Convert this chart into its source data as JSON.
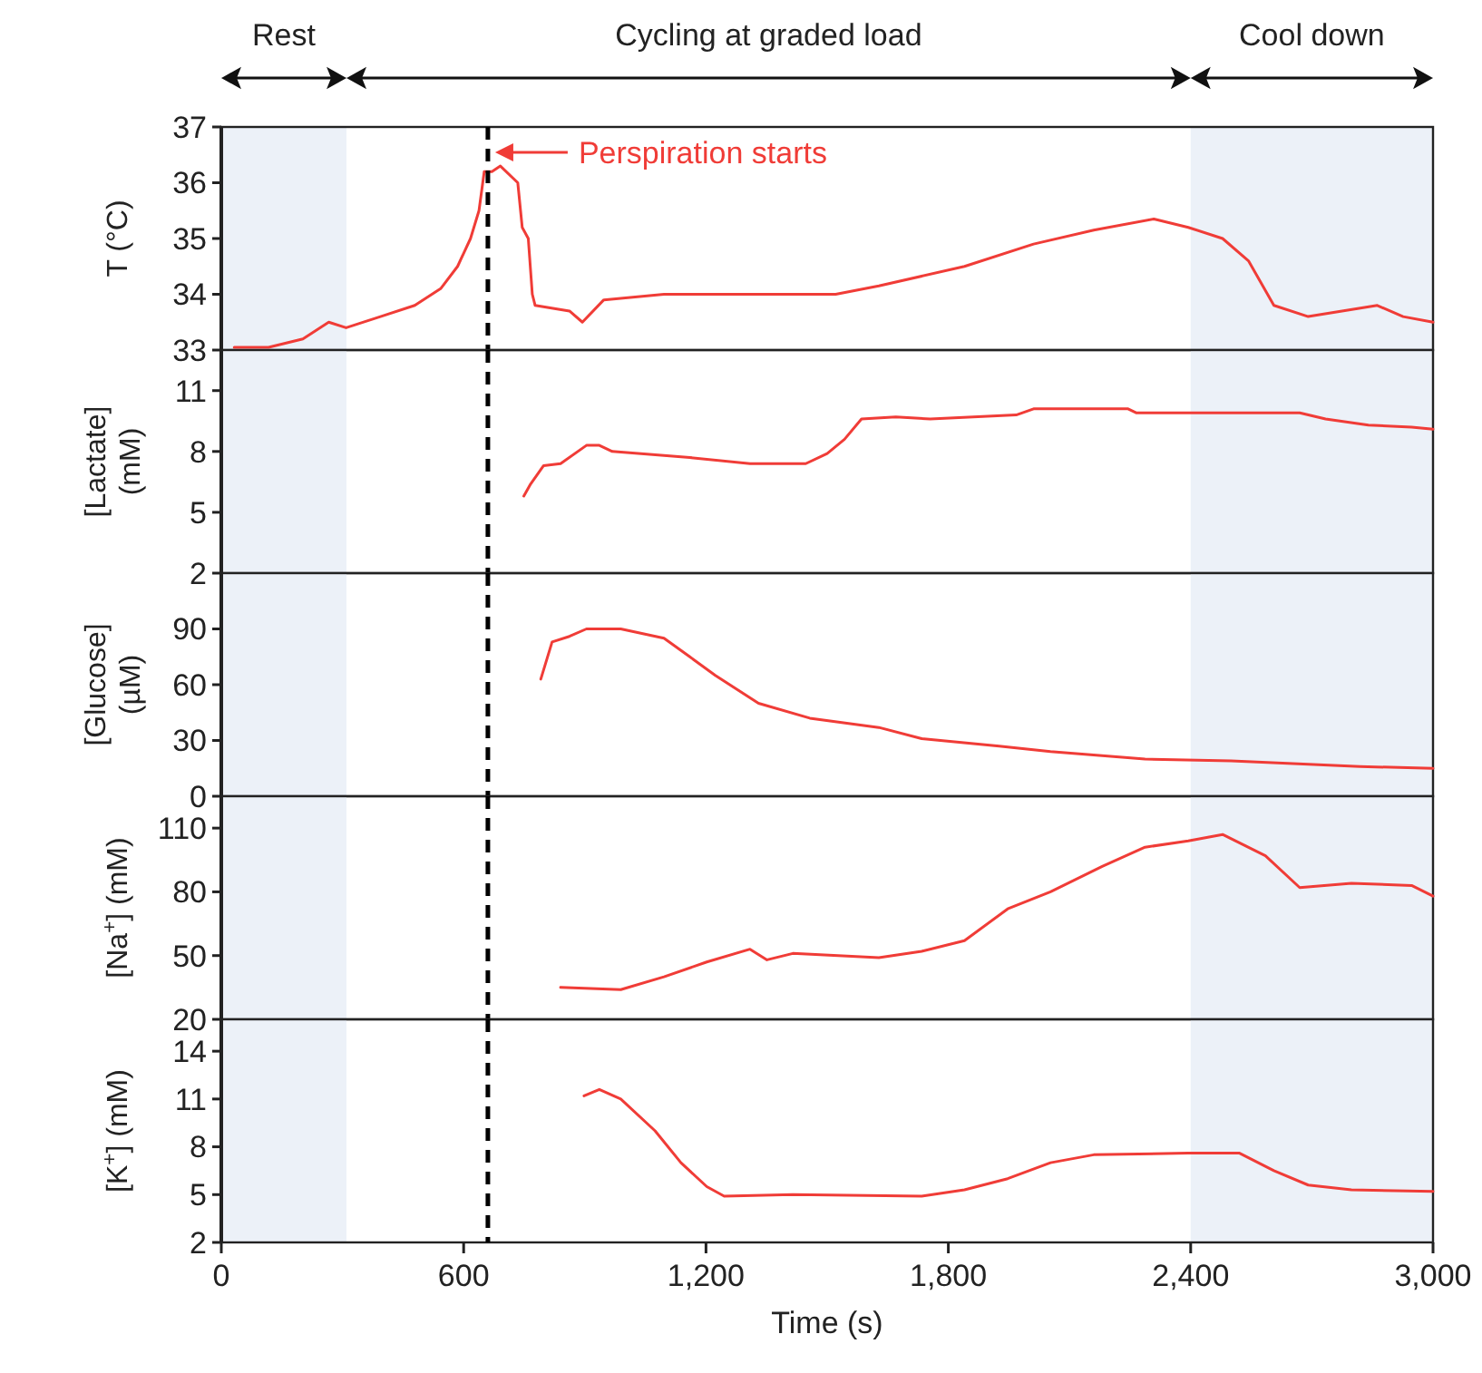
{
  "chart_data": [
    {
      "type": "line",
      "ylabel": "T (°C)",
      "xlim": [
        0,
        3000
      ],
      "ylim": [
        33,
        37
      ],
      "yticks": [
        33,
        34,
        35,
        36,
        37
      ],
      "tick_labels": "y",
      "grid": false,
      "series": [
        {
          "color": "#f03c37",
          "x": [
            32,
            117,
            202,
            266,
            309,
            394,
            479,
            543,
            585,
            617,
            638,
            651,
            670,
            691,
            734,
            745,
            760,
            770,
            777,
            862,
            894,
            947,
            1096,
            1521,
            1628,
            1840,
            2011,
            2160,
            2309,
            2394,
            2479,
            2543,
            2606,
            2691,
            2862,
            2926,
            3000
          ],
          "values": [
            33.05,
            33.05,
            33.2,
            33.5,
            33.4,
            33.6,
            33.8,
            34.1,
            34.5,
            35.0,
            35.5,
            36.2,
            36.2,
            36.3,
            36.0,
            35.2,
            35.0,
            34.0,
            33.8,
            33.7,
            33.5,
            33.9,
            34.0,
            34.0,
            34.15,
            34.5,
            34.9,
            35.15,
            35.35,
            35.2,
            35.0,
            34.6,
            33.8,
            33.6,
            33.8,
            33.6,
            33.5
          ]
        }
      ],
      "ref_lines": [
        {
          "axis": "x",
          "value": 660,
          "color": "#000000",
          "line_style": "dashed"
        }
      ],
      "bands": [
        {
          "axis": "x",
          "from": 0,
          "to": 310,
          "label": "Rest",
          "color": "#ecf1f8"
        },
        {
          "axis": "x",
          "from": 2400,
          "to": 3000,
          "label": "Cool down",
          "color": "#ecf1f8"
        }
      ],
      "annotations": [
        "Perspiration starts",
        "Cycling at graded load"
      ]
    },
    {
      "type": "line",
      "ylabel": "[Lactate] (mM)",
      "xlim": [
        0,
        3000
      ],
      "ylim": [
        2,
        13
      ],
      "yticks": [
        2,
        5,
        8,
        11
      ],
      "tick_labels": "y",
      "grid": false,
      "series": [
        {
          "color": "#f03c37",
          "x": [
            749,
            766,
            798,
            840,
            904,
            936,
            968,
            1160,
            1309,
            1447,
            1500,
            1543,
            1585,
            1670,
            1755,
            1968,
            2011,
            2245,
            2266,
            2670,
            2734,
            2840,
            2947,
            3000
          ],
          "values": [
            5.8,
            6.4,
            7.3,
            7.4,
            8.3,
            8.3,
            8.0,
            7.7,
            7.4,
            7.4,
            7.9,
            8.6,
            9.6,
            9.7,
            9.6,
            9.8,
            10.1,
            10.1,
            9.9,
            9.9,
            9.6,
            9.3,
            9.2,
            9.1
          ]
        }
      ],
      "ref_lines": [
        {
          "axis": "x",
          "value": 660,
          "color": "#000000",
          "line_style": "dashed"
        }
      ],
      "bands": [
        {
          "axis": "x",
          "from": 0,
          "to": 310,
          "color": "#ecf1f8"
        },
        {
          "axis": "x",
          "from": 2400,
          "to": 3000,
          "color": "#ecf1f8"
        }
      ]
    },
    {
      "type": "line",
      "ylabel": "[Glucose] (µM)",
      "xlim": [
        0,
        3000
      ],
      "ylim": [
        0,
        120
      ],
      "yticks": [
        0,
        30,
        60,
        90
      ],
      "tick_labels": "y",
      "grid": false,
      "series": [
        {
          "color": "#f03c37",
          "x": [
            791,
            819,
            862,
            904,
            989,
            1096,
            1160,
            1223,
            1330,
            1457,
            1628,
            1734,
            1926,
            2053,
            2287,
            2500,
            2819,
            3000
          ],
          "values": [
            63,
            83,
            86,
            90,
            90,
            85,
            75,
            65,
            50,
            42,
            37,
            31,
            27,
            24,
            20,
            19,
            16,
            15
          ]
        }
      ],
      "ref_lines": [
        {
          "axis": "x",
          "value": 660,
          "color": "#000000",
          "line_style": "dashed"
        }
      ],
      "bands": [
        {
          "axis": "x",
          "from": 0,
          "to": 310,
          "color": "#ecf1f8"
        },
        {
          "axis": "x",
          "from": 2400,
          "to": 3000,
          "color": "#ecf1f8"
        }
      ]
    },
    {
      "type": "line",
      "ylabel": "[Na$^{+}$] (mM)",
      "xlim": [
        0,
        3000
      ],
      "ylim": [
        20,
        125
      ],
      "yticks": [
        20,
        50,
        80,
        110
      ],
      "tick_labels": "y",
      "grid": false,
      "series": [
        {
          "color": "#f03c37",
          "x": [
            840,
            989,
            1096,
            1202,
            1309,
            1351,
            1415,
            1628,
            1734,
            1840,
            1947,
            2053,
            2181,
            2287,
            2394,
            2479,
            2585,
            2670,
            2798,
            2947,
            3000
          ],
          "values": [
            35,
            34,
            40,
            47,
            53,
            48,
            51,
            49,
            52,
            57,
            72,
            80,
            92,
            101,
            104,
            107,
            97,
            82,
            84,
            83,
            78
          ]
        }
      ],
      "ref_lines": [
        {
          "axis": "x",
          "value": 660,
          "color": "#000000",
          "line_style": "dashed"
        }
      ],
      "bands": [
        {
          "axis": "x",
          "from": 0,
          "to": 310,
          "color": "#ecf1f8"
        },
        {
          "axis": "x",
          "from": 2400,
          "to": 3000,
          "color": "#ecf1f8"
        }
      ]
    },
    {
      "type": "line",
      "ylabel": "[K$^{+}$] (mM)",
      "xlabel": "Time (s)",
      "xlim": [
        0,
        3000
      ],
      "xticks": [
        0,
        600,
        {
          "value": 1200,
          "label": "1,200"
        },
        {
          "value": 1800,
          "label": "1,800"
        },
        {
          "value": 2400,
          "label": "2,400"
        },
        {
          "value": 3000,
          "label": "3,000"
        }
      ],
      "ylim": [
        2,
        16
      ],
      "yticks": [
        2,
        5,
        8,
        11,
        14
      ],
      "grid": false,
      "series": [
        {
          "color": "#f03c37",
          "x": [
            898,
            936,
            989,
            1074,
            1138,
            1202,
            1245,
            1415,
            1734,
            1840,
            1947,
            2053,
            2160,
            2394,
            2521,
            2606,
            2691,
            2798,
            3000
          ],
          "values": [
            11.2,
            11.6,
            11.0,
            9.0,
            7.0,
            5.5,
            4.9,
            5.0,
            4.9,
            5.3,
            6.0,
            7.0,
            7.5,
            7.6,
            7.6,
            6.5,
            5.6,
            5.3,
            5.2
          ]
        }
      ],
      "ref_lines": [
        {
          "axis": "x",
          "value": 660,
          "color": "#000000",
          "line_style": "dashed"
        }
      ],
      "bands": [
        {
          "axis": "x",
          "from": 0,
          "to": 310,
          "color": "#ecf1f8"
        },
        {
          "axis": "x",
          "from": 2400,
          "to": 3000,
          "color": "#ecf1f8"
        }
      ]
    }
  ]
}
